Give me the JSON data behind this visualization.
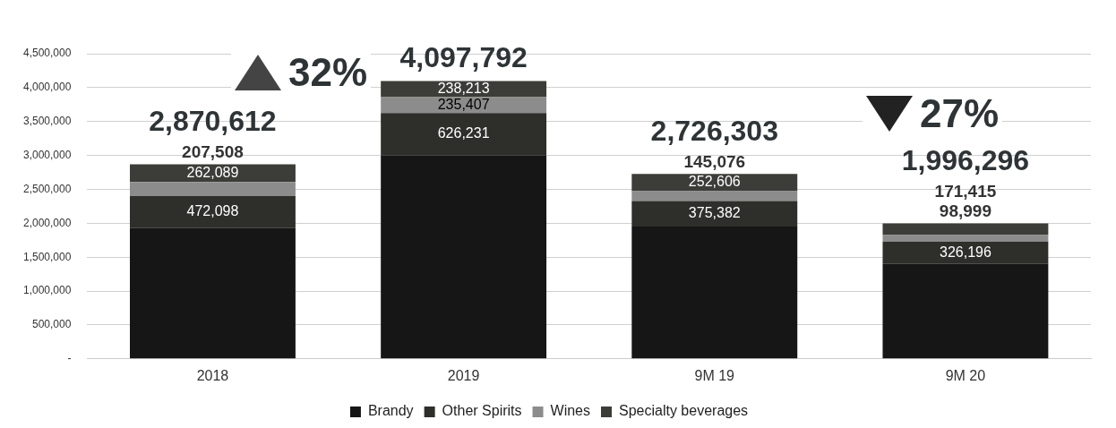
{
  "chart_data": {
    "type": "bar",
    "stacked": true,
    "categories": [
      "2018",
      "2019",
      "9M 19",
      "9M 20"
    ],
    "series": [
      {
        "name": "Brandy",
        "color": "#161616",
        "values": [
          1928917,
          2997941,
          1953239,
          1399686
        ],
        "value_labels": [
          null,
          null,
          null,
          null
        ]
      },
      {
        "name": "Other Spirits",
        "color": "#2e2e2b",
        "values": [
          472098,
          626231,
          375382,
          326196
        ],
        "value_labels": [
          "472,098",
          "626,231",
          "375,382",
          "326,196"
        ]
      },
      {
        "name": "Wines",
        "color": "#8c8c8c",
        "values": [
          207508,
          235407,
          145076,
          98999
        ],
        "value_labels": [
          "207,508",
          "235,407",
          "145,076",
          "98,999"
        ]
      },
      {
        "name": "Specialty beverages",
        "color": "#3c3c38",
        "values": [
          262089,
          238213,
          252606,
          171415
        ],
        "value_labels": [
          "262,089",
          "238,213",
          "252,606",
          "171,415"
        ]
      }
    ],
    "totals": [
      "2,870,612",
      "4,097,792",
      "2,726,303",
      "1,996,296"
    ],
    "annotations": [
      "32%",
      "27%"
    ],
    "ylim": [
      0,
      4500000
    ],
    "yticks": [
      {
        "value": 0,
        "label": "-"
      },
      {
        "value": 500000,
        "label": "500,000"
      },
      {
        "value": 1000000,
        "label": "1,000,000"
      },
      {
        "value": 1500000,
        "label": "1,500,000"
      },
      {
        "value": 2000000,
        "label": "2,000,000"
      },
      {
        "value": 2500000,
        "label": "2,500,000"
      },
      {
        "value": 3000000,
        "label": "3,000,000"
      },
      {
        "value": 3500000,
        "label": "3,500,000"
      },
      {
        "value": 4000000,
        "label": "4,000,000"
      },
      {
        "value": 4500000,
        "label": "4,500,000"
      }
    ],
    "grid": "y",
    "legend": "bottom"
  }
}
